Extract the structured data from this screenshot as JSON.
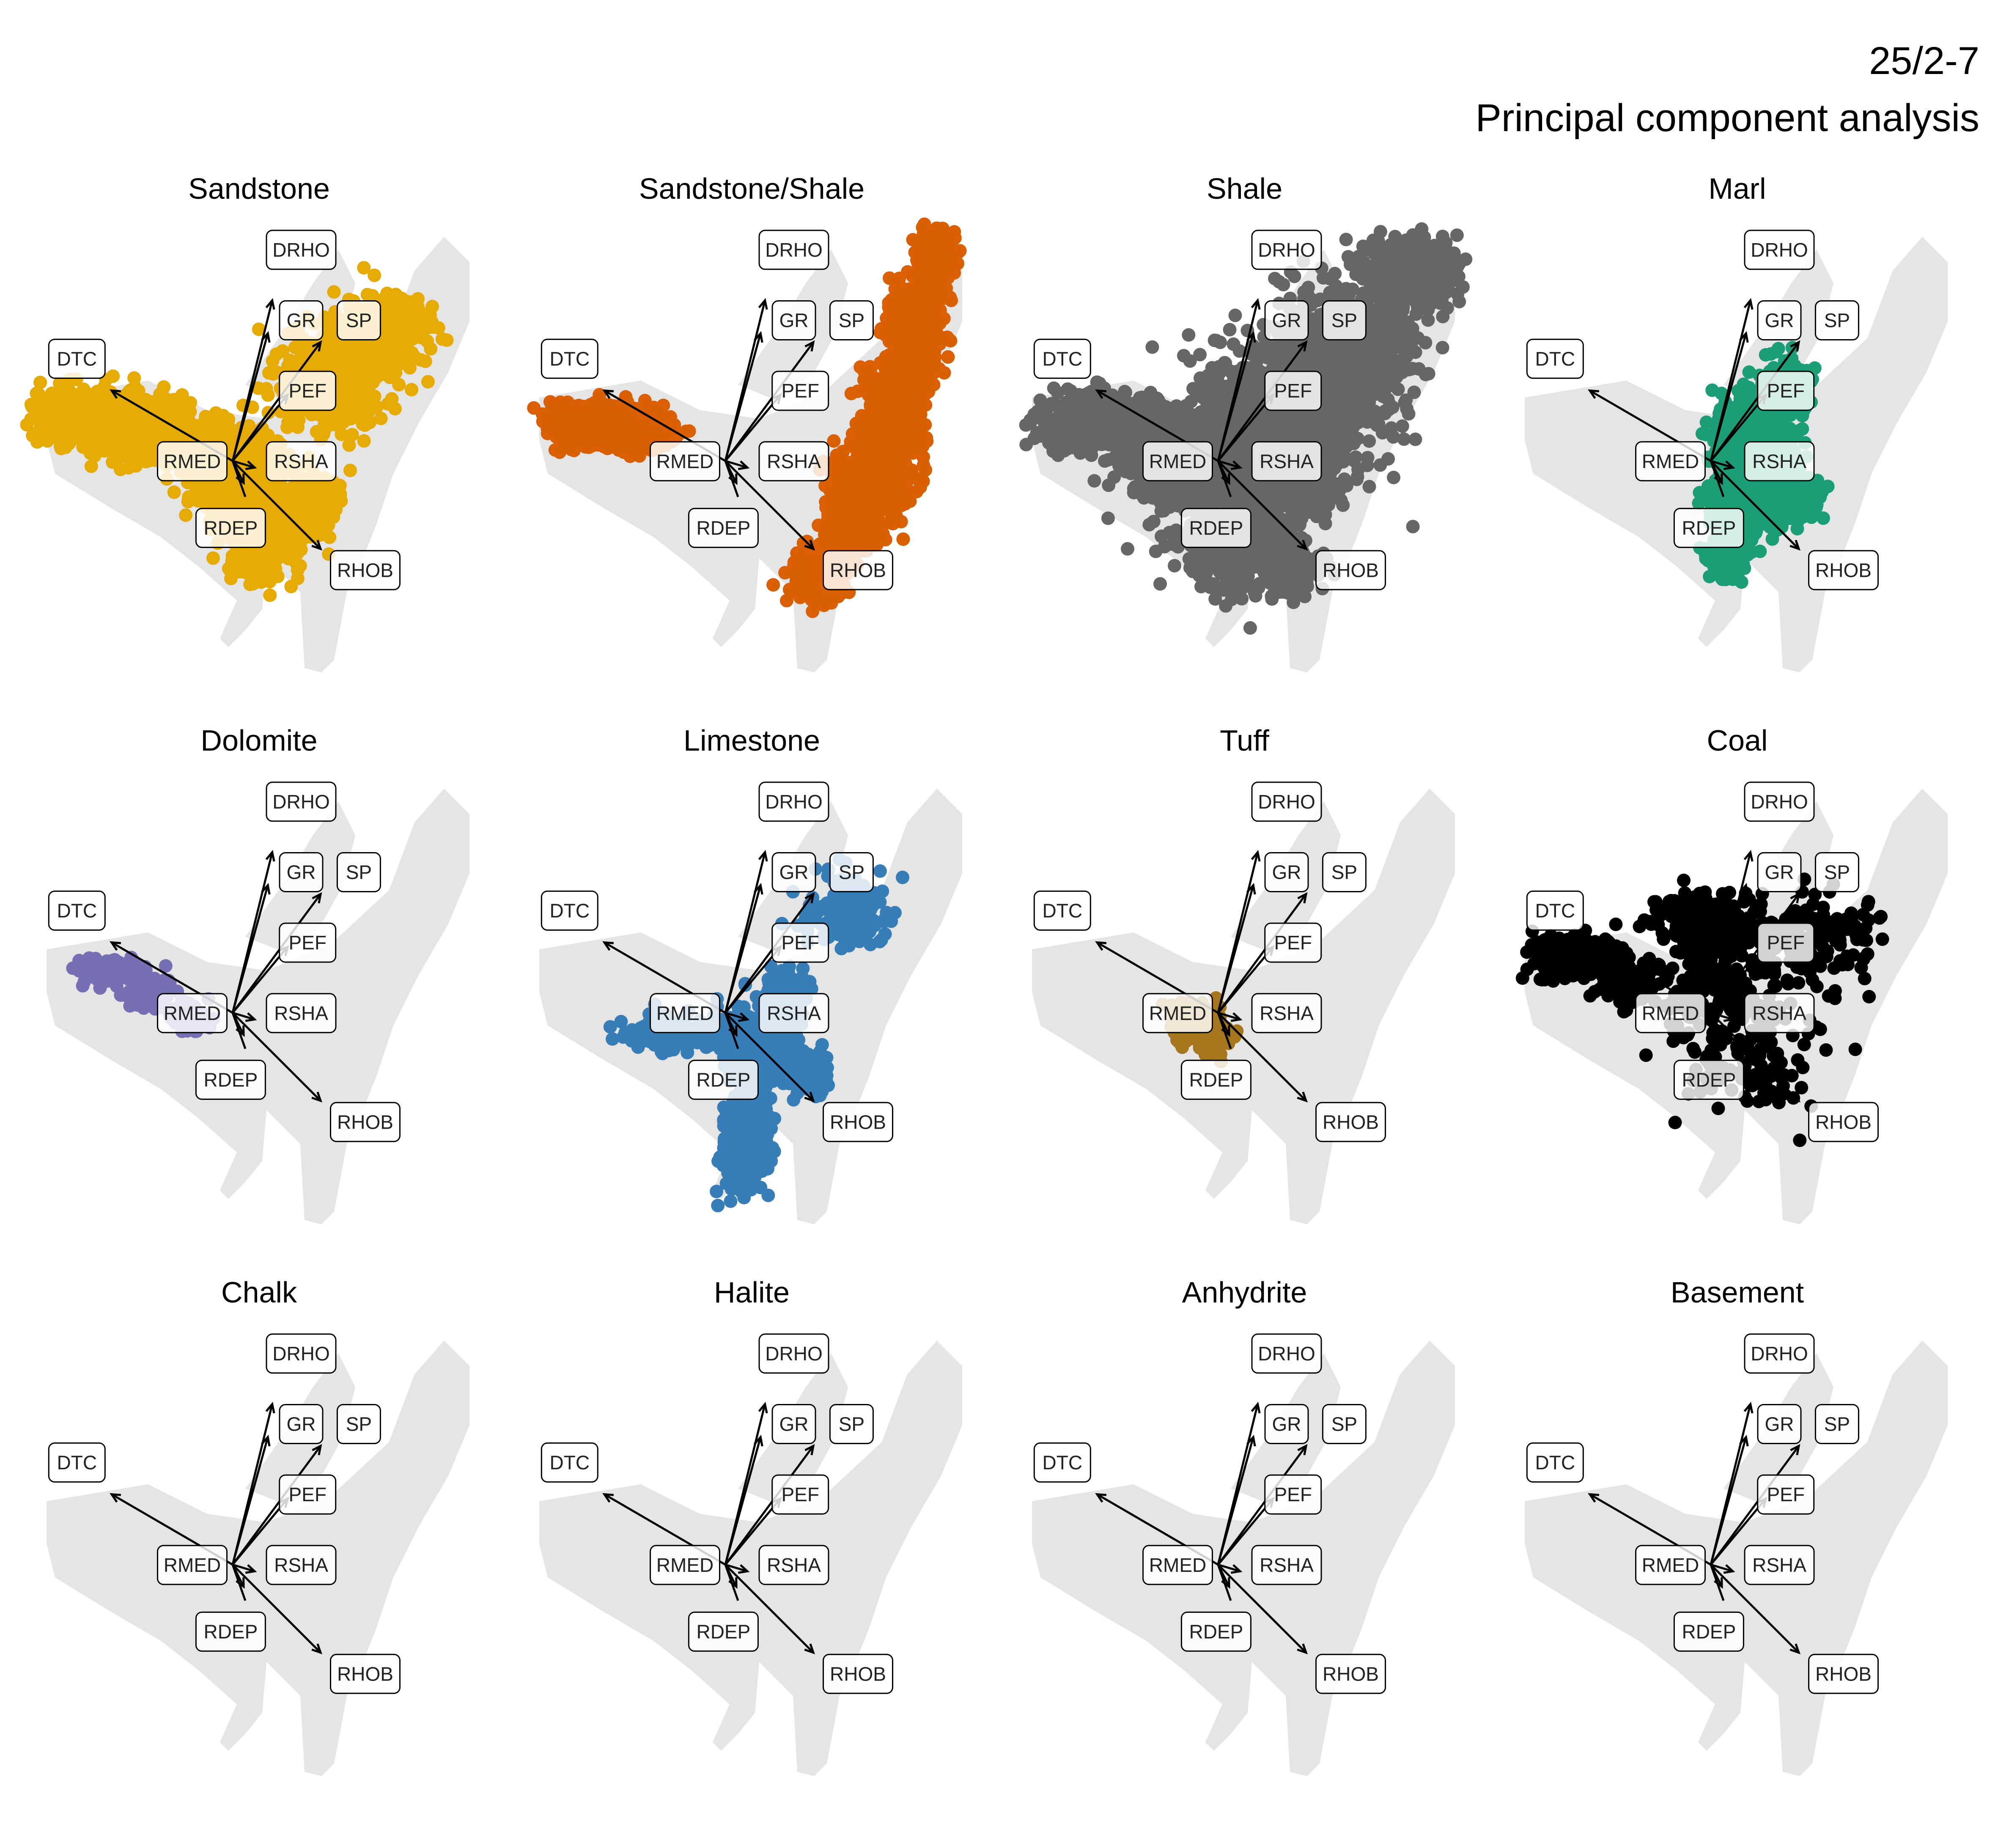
{
  "header": {
    "title": "25/2-7",
    "subtitle": "Principal component analysis"
  },
  "colors": {
    "background_cloud": "#e5e5e5",
    "arrow": "#000000",
    "label_border": "#000000"
  },
  "variables": [
    "DRHO",
    "GR",
    "SP",
    "DTC",
    "PEF",
    "RMED",
    "RSHA",
    "RDEP",
    "RHOB"
  ],
  "panels": [
    {
      "title": "Sandstone",
      "color": "#E6AB02",
      "has_points": true
    },
    {
      "title": "Sandstone/Shale",
      "color": "#D95F02",
      "has_points": true
    },
    {
      "title": "Shale",
      "color": "#666666",
      "has_points": true
    },
    {
      "title": "Marl",
      "color": "#1B9E77",
      "has_points": true
    },
    {
      "title": "Dolomite",
      "color": "#7570B3",
      "has_points": true
    },
    {
      "title": "Limestone",
      "color": "#377EB8",
      "has_points": true
    },
    {
      "title": "Tuff",
      "color": "#A6761D",
      "has_points": true
    },
    {
      "title": "Coal",
      "color": "#000000",
      "has_points": true
    },
    {
      "title": "Chalk",
      "color": "#999999",
      "has_points": false
    },
    {
      "title": "Halite",
      "color": "#999999",
      "has_points": false
    },
    {
      "title": "Anhydrite",
      "color": "#999999",
      "has_points": false
    },
    {
      "title": "Basement",
      "color": "#999999",
      "has_points": false
    }
  ],
  "chart_data": {
    "type": "scatter",
    "description_layout": "3x4 facet grid of PCA biplots, one panel per lithology; grey background shows all samples, coloured points show the lithology, arrows show variable loadings",
    "x": [],
    "y": [],
    "grid": false,
    "legend": "none",
    "series_names": [
      "Sandstone",
      "Sandstone/Shale",
      "Shale",
      "Marl",
      "Dolomite",
      "Limestone",
      "Tuff",
      "Coal",
      "Chalk",
      "Halite",
      "Anhydrite",
      "Basement"
    ],
    "loadings": [
      {
        "variable": "DRHO",
        "pc1": 0.18,
        "pc2": 0.73
      },
      {
        "variable": "GR",
        "pc1": 0.16,
        "pc2": 0.58
      },
      {
        "variable": "SP",
        "pc1": 0.4,
        "pc2": 0.54
      },
      {
        "variable": "DTC",
        "pc1": -0.55,
        "pc2": 0.32
      },
      {
        "variable": "PEF",
        "pc1": 0.25,
        "pc2": 0.3
      },
      {
        "variable": "RMED",
        "pc1": 0.0,
        "pc2": 0.0
      },
      {
        "variable": "RSHA",
        "pc1": 0.1,
        "pc2": -0.03
      },
      {
        "variable": "RDEP",
        "pc1": 0.05,
        "pc2": -0.1
      },
      {
        "variable": "RHOB",
        "pc1": 0.4,
        "pc2": -0.4
      }
    ]
  }
}
